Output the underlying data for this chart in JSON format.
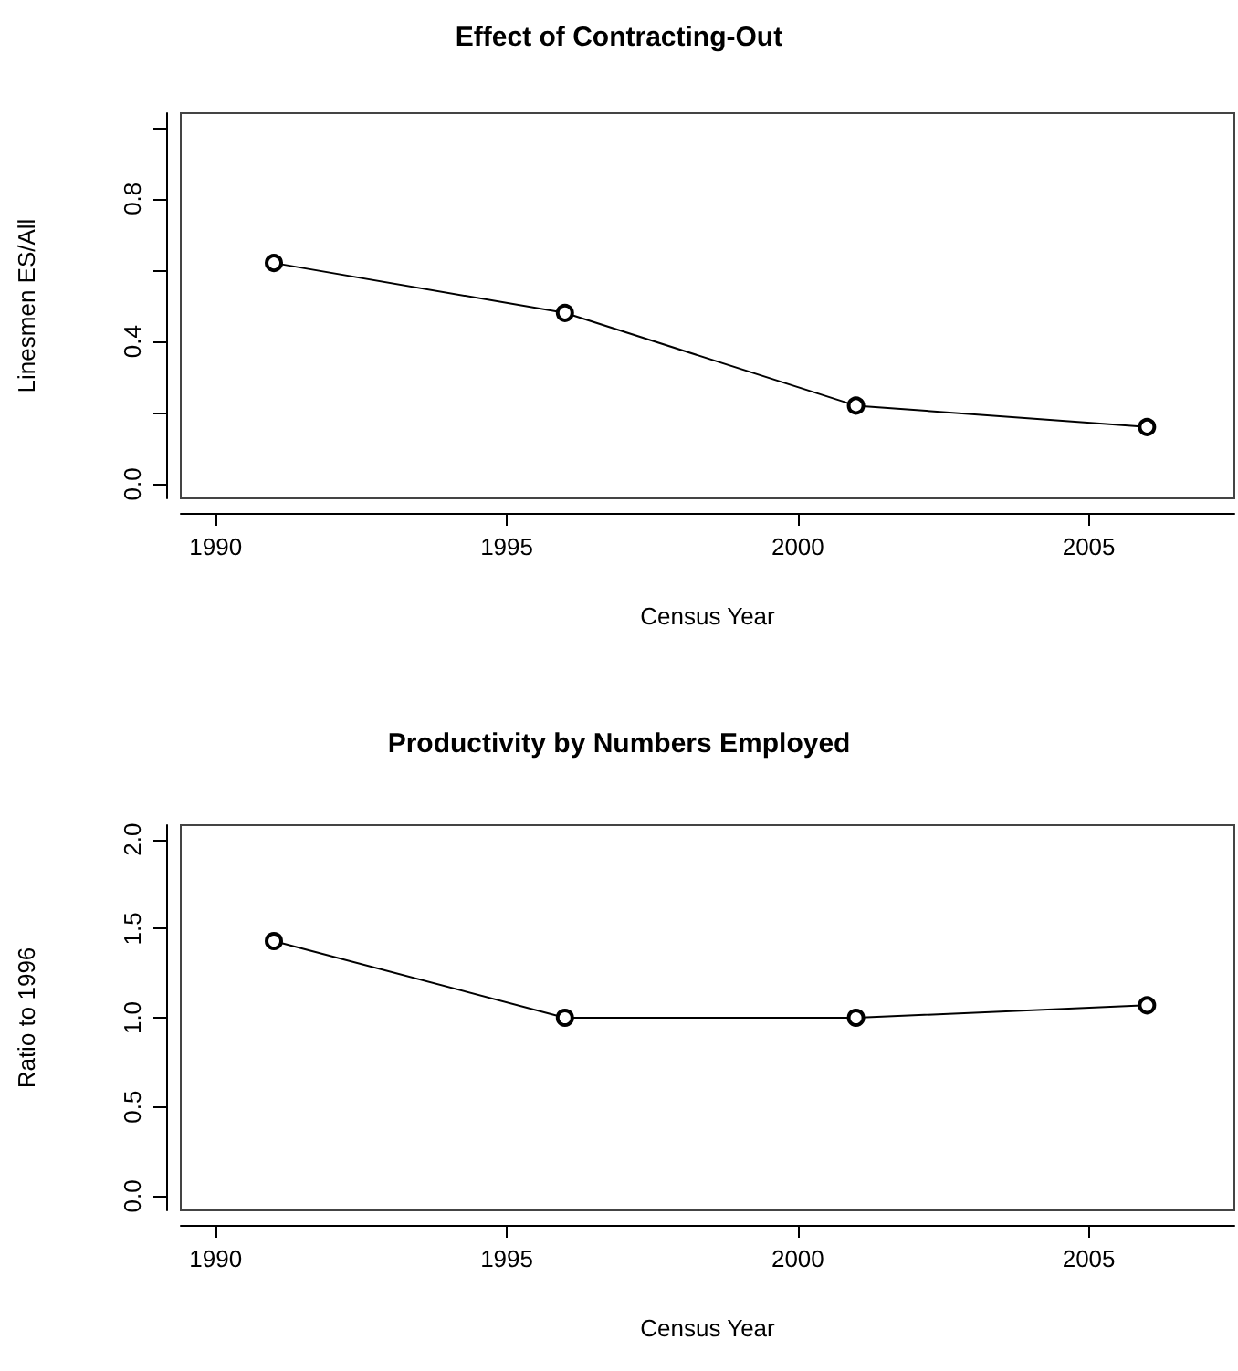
{
  "chart_data": [
    {
      "type": "line",
      "title": "Effect of Contracting-Out",
      "xlabel": "Census Year",
      "ylabel": "Linesmen ES/All",
      "x": [
        1991,
        1996,
        2001,
        2006
      ],
      "series": [
        {
          "color": "#000000",
          "values": [
            0.62,
            0.48,
            0.22,
            0.16
          ]
        }
      ],
      "xlim": [
        1989.4,
        2007.5
      ],
      "xticks": [
        1990,
        1995,
        2000,
        2005
      ],
      "ylim": [
        -0.04,
        1.04
      ],
      "yticks": [
        {
          "value": 0,
          "label": "0.0"
        },
        {
          "value": 0.2,
          "label": null
        },
        {
          "value": 0.4,
          "label": "0.4"
        },
        {
          "value": 0.6,
          "label": null
        },
        {
          "value": 0.8,
          "label": "0.8"
        },
        {
          "value": 1,
          "label": null
        }
      ],
      "marker": "circle",
      "line_style": "solid"
    },
    {
      "type": "line",
      "title": "Productivity by Numbers Employed",
      "xlabel": "Census Year",
      "ylabel": "Ratio to 1996",
      "x": [
        1991,
        1996,
        2001,
        2006
      ],
      "series": [
        {
          "color": "#000000",
          "values": [
            1.43,
            1.0,
            1.0,
            1.07
          ]
        }
      ],
      "xlim": [
        1989.4,
        2007.5
      ],
      "xticks": [
        1990,
        1995,
        2000,
        2005
      ],
      "ylim": [
        -0.08,
        2.08
      ],
      "yticks": [
        {
          "value": 0,
          "label": "0.0"
        },
        {
          "value": 0.5,
          "label": "0.5"
        },
        {
          "value": 1,
          "label": "1.0"
        },
        {
          "value": 1.5,
          "label": "1.5"
        },
        {
          "value": 2,
          "label": "2.0"
        }
      ],
      "marker": "circle",
      "line_style": "solid"
    }
  ]
}
